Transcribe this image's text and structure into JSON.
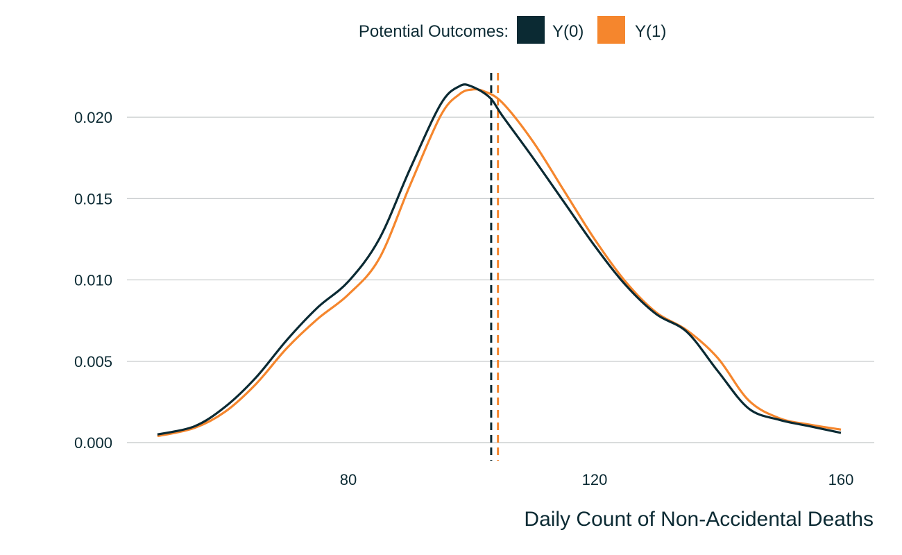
{
  "chart_data": {
    "type": "line",
    "xlabel": "Daily Count of Non-Accidental Deaths",
    "ylabel": "",
    "xlim": [
      44,
      166
    ],
    "ylim": [
      0,
      0.022
    ],
    "x_ticks": [
      80,
      120,
      160
    ],
    "x_tick_labels": [
      "80",
      "120",
      "160"
    ],
    "y_ticks": [
      0,
      0.005,
      0.01,
      0.015,
      0.02
    ],
    "y_tick_labels": [
      "0.000",
      "0.005",
      "0.010",
      "0.015",
      "0.020"
    ],
    "grid": "horizontal",
    "legend": {
      "position": "top",
      "title": "Potential Outcomes:",
      "entries": [
        {
          "label": "Y(0)",
          "color": "#0b2a33"
        },
        {
          "label": "Y(1)",
          "color": "#f5862d"
        }
      ]
    },
    "series": [
      {
        "name": "Y(0)",
        "color": "#0b2a33",
        "mean": 103.2,
        "x": [
          49,
          55,
          60,
          65,
          70,
          75,
          80,
          85,
          90,
          95,
          98,
          100,
          103,
          105,
          110,
          115,
          120,
          125,
          130,
          135,
          140,
          145,
          150,
          155,
          160
        ],
        "y": [
          0.0005,
          0.001,
          0.0022,
          0.004,
          0.0063,
          0.0083,
          0.0099,
          0.0125,
          0.0168,
          0.0208,
          0.0219,
          0.0219,
          0.0212,
          0.0201,
          0.0175,
          0.0148,
          0.0121,
          0.0097,
          0.0079,
          0.0068,
          0.0044,
          0.0021,
          0.0014,
          0.001,
          0.0006
        ]
      },
      {
        "name": "Y(1)",
        "color": "#f5862d",
        "mean": 104.3,
        "x": [
          49,
          55,
          60,
          65,
          70,
          75,
          80,
          85,
          90,
          95,
          98,
          100,
          102,
          105,
          110,
          115,
          120,
          125,
          130,
          135,
          140,
          145,
          150,
          155,
          160
        ],
        "y": [
          0.0004,
          0.0009,
          0.0019,
          0.0036,
          0.0058,
          0.0076,
          0.0091,
          0.0113,
          0.0158,
          0.0201,
          0.0214,
          0.0217,
          0.0216,
          0.0209,
          0.0185,
          0.0155,
          0.0125,
          0.0099,
          0.008,
          0.0069,
          0.0052,
          0.0026,
          0.0015,
          0.0011,
          0.0008
        ]
      }
    ]
  }
}
